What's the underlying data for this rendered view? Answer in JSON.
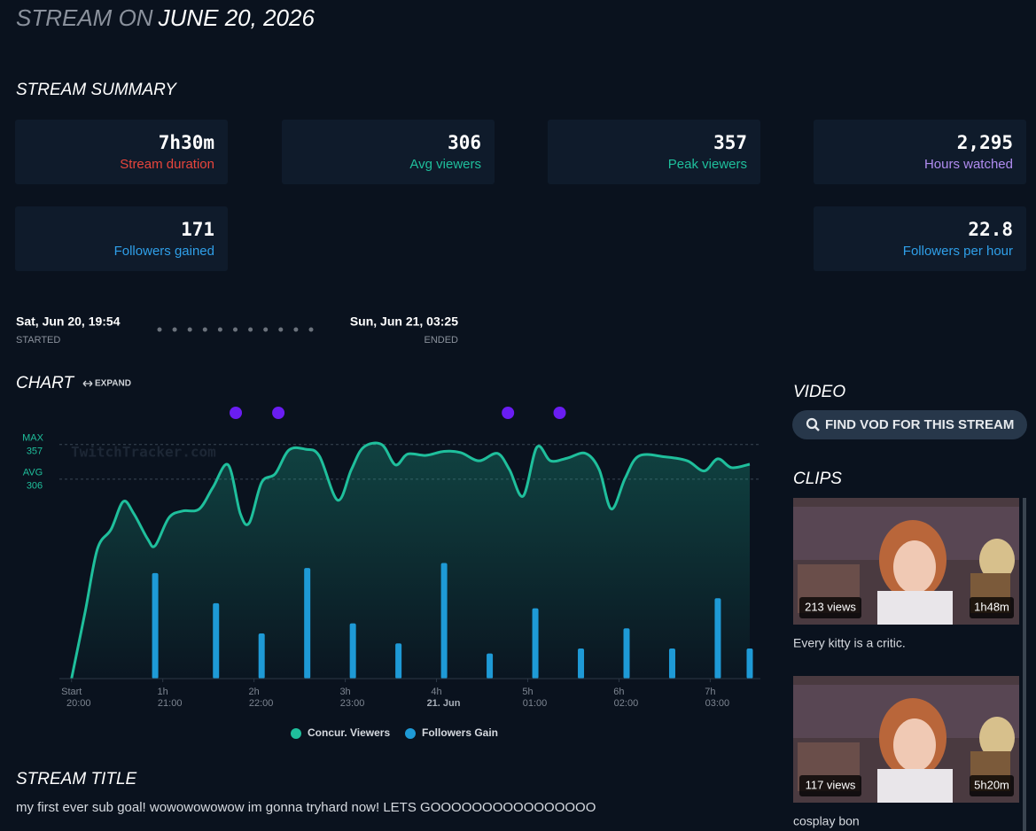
{
  "header": {
    "prefix": "STREAM ON",
    "date": "JUNE 20, 2026"
  },
  "summary": {
    "title": "STREAM SUMMARY",
    "cards": [
      {
        "value": "7h30m",
        "label": "Stream duration",
        "color": "#e8453c"
      },
      {
        "value": "306",
        "label": "Avg viewers",
        "color": "#1fbf9c"
      },
      {
        "value": "357",
        "label": "Peak viewers",
        "color": "#1fbf9c"
      },
      {
        "value": "2,295",
        "label": "Hours watched",
        "color": "#b08cf0"
      },
      {
        "value": "171",
        "label": "Followers gained",
        "color": "#2f9fe8"
      },
      {
        "value": "22.8",
        "label": "Followers per hour",
        "color": "#2f9fe8"
      }
    ]
  },
  "timeline": {
    "start": {
      "time": "Sat, Jun 20, 19:54",
      "label": "STARTED"
    },
    "end": {
      "time": "Sun, Jun 21, 03:25",
      "label": "ENDED"
    }
  },
  "chart_section": {
    "title": "CHART",
    "expand": "EXPAND"
  },
  "chart_data": {
    "type": "combo",
    "watermark": "TwitchTracker.com",
    "xlim": [
      -8,
      453
    ],
    "xticks": [
      {
        "value": 0,
        "label": "Start",
        "sublabel": "20:00"
      },
      {
        "value": 60,
        "label": "1h",
        "sublabel": "21:00"
      },
      {
        "value": 120,
        "label": "2h",
        "sublabel": "22:00"
      },
      {
        "value": 180,
        "label": "3h",
        "sublabel": "23:00"
      },
      {
        "value": 240,
        "label": "4h",
        "sublabel": "21. Jun",
        "emphasis": true
      },
      {
        "value": 300,
        "label": "5h",
        "sublabel": "01:00"
      },
      {
        "value": 360,
        "label": "6h",
        "sublabel": "02:00"
      },
      {
        "value": 420,
        "label": "7h",
        "sublabel": "03:00"
      }
    ],
    "ylim": [
      12,
      375
    ],
    "y2lim": [
      0,
      49
    ],
    "reference_lines": [
      {
        "label": "MAX",
        "value": 357
      },
      {
        "label": "AVG",
        "value": 306
      }
    ],
    "series": [
      {
        "name": "Concur. Viewers",
        "type": "area",
        "color": "#1fbf9c",
        "x": [
          0,
          9,
          17,
          26,
          34,
          41,
          50,
          55,
          64,
          73,
          84,
          93,
          103,
          111,
          117,
          125,
          134,
          143,
          154,
          163,
          175,
          184,
          192,
          204,
          213,
          221,
          233,
          245,
          256,
          268,
          280,
          288,
          297,
          306,
          315,
          326,
          338,
          347,
          355,
          364,
          373,
          390,
          405,
          416,
          425,
          434,
          446
        ],
        "values": [
          12,
          111,
          203,
          232,
          273,
          255,
          218,
          208,
          249,
          259,
          262,
          294,
          327,
          255,
          242,
          301,
          314,
          349,
          350,
          340,
          275,
          320,
          353,
          357,
          327,
          343,
          341,
          347,
          345,
          333,
          344,
          320,
          281,
          353,
          333,
          337,
          344,
          320,
          262,
          307,
          340,
          339,
          333,
          318,
          336,
          323,
          328
        ]
      },
      {
        "name": "Followers Gain",
        "type": "bar",
        "axis": "y2",
        "color": "#1e9ad6",
        "x": [
          55,
          95,
          125,
          155,
          185,
          215,
          245,
          275,
          305,
          335,
          365,
          395,
          425,
          446
        ],
        "values": [
          21,
          15,
          9,
          22,
          11,
          7,
          23,
          5,
          14,
          6,
          10,
          6,
          16,
          6
        ]
      }
    ],
    "events": {
      "color": "#6a1df2",
      "x": [
        108,
        136,
        287,
        321
      ]
    }
  },
  "video": {
    "title": "VIDEO",
    "button": "FIND VOD FOR THIS STREAM"
  },
  "clips": {
    "title": "CLIPS",
    "items": [
      {
        "views": "213 views",
        "duration": "1h48m",
        "title": "Every kitty is a critic."
      },
      {
        "views": "117 views",
        "duration": "5h20m",
        "title": "cosplay bon"
      }
    ]
  },
  "stream_title": {
    "title": "STREAM TITLE",
    "text": "my first ever sub goal! wowowowowow im gonna tryhard now! LETS GOOOOOOOOOOOOOOOO"
  }
}
